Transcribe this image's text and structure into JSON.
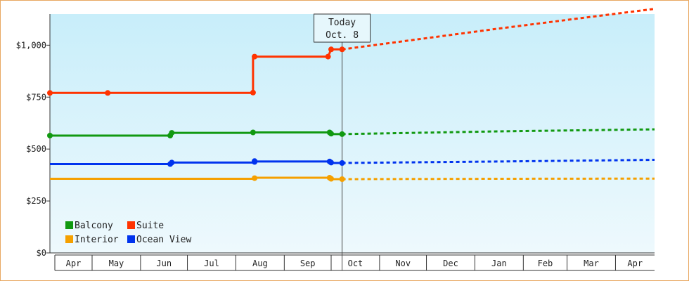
{
  "chart_data": {
    "type": "line",
    "title": "",
    "xlabel": "",
    "ylabel": "",
    "ylim": [
      0,
      1150
    ],
    "yticks": [
      {
        "value": 0,
        "label": "$0"
      },
      {
        "value": 250,
        "label": "$250"
      },
      {
        "value": 500,
        "label": "$500"
      },
      {
        "value": 750,
        "label": "$750"
      },
      {
        "value": 1000,
        "label": "$1,000"
      }
    ],
    "x_range_days": [
      -187,
      200
    ],
    "x_ticks": [
      {
        "label": "Apr",
        "start": -190,
        "end": -160
      },
      {
        "label": "May",
        "start": -160,
        "end": -129
      },
      {
        "label": "Jun",
        "start": -129,
        "end": -99
      },
      {
        "label": "Jul",
        "start": -99,
        "end": -68
      },
      {
        "label": "Aug",
        "start": -68,
        "end": -37
      },
      {
        "label": "Sep",
        "start": -37,
        "end": -7
      },
      {
        "label": "Oct",
        "start": -7,
        "end": 24
      },
      {
        "label": "Nov",
        "start": 24,
        "end": 54
      },
      {
        "label": "Dec",
        "start": 54,
        "end": 85
      },
      {
        "label": "Jan",
        "start": 85,
        "end": 116
      },
      {
        "label": "Feb",
        "start": 116,
        "end": 144
      },
      {
        "label": "Mar",
        "start": 144,
        "end": 175
      },
      {
        "label": "Apr",
        "start": 175,
        "end": 205
      }
    ],
    "today": {
      "line1": "Today",
      "line2": "Oct. 8",
      "day": 0
    },
    "grid": false,
    "legend_position": "bottom-left",
    "series": [
      {
        "name": "Balcony",
        "color": "#119911",
        "history": [
          [
            -187,
            565
          ],
          [
            -110,
            565
          ],
          [
            -110,
            578
          ],
          [
            -57,
            578
          ],
          [
            -57,
            580
          ],
          [
            -8,
            580
          ],
          [
            -8,
            572
          ],
          [
            0,
            572
          ]
        ],
        "markers": [
          [
            -187,
            565
          ],
          [
            -110,
            565
          ],
          [
            -109,
            578
          ],
          [
            -57,
            580
          ],
          [
            -8,
            580
          ],
          [
            -7,
            574
          ],
          [
            0,
            572
          ]
        ],
        "forecast": [
          [
            0,
            572
          ],
          [
            100,
            585
          ],
          [
            200,
            595
          ]
        ]
      },
      {
        "name": "Suite",
        "color": "#ff3300",
        "history": [
          [
            -187,
            770
          ],
          [
            -150,
            770
          ],
          [
            -57,
            770
          ],
          [
            -57,
            945
          ],
          [
            -9,
            945
          ],
          [
            -7,
            980
          ],
          [
            0,
            980
          ]
        ],
        "markers": [
          [
            -187,
            770
          ],
          [
            -150,
            770
          ],
          [
            -57,
            772
          ],
          [
            -56,
            945
          ],
          [
            -9,
            945
          ],
          [
            -7,
            980
          ],
          [
            0,
            980
          ]
        ],
        "forecast": [
          [
            0,
            980
          ],
          [
            100,
            1080
          ],
          [
            200,
            1175
          ]
        ]
      },
      {
        "name": "Interior",
        "color": "#f5a000",
        "history": [
          [
            -187,
            357
          ],
          [
            -56,
            357
          ],
          [
            -56,
            362
          ],
          [
            -8,
            362
          ],
          [
            -8,
            355
          ],
          [
            0,
            355
          ]
        ],
        "markers": [
          [
            -56,
            360
          ],
          [
            -8,
            362
          ],
          [
            -7,
            357
          ],
          [
            0,
            355
          ]
        ],
        "forecast": [
          [
            0,
            355
          ],
          [
            100,
            357
          ],
          [
            200,
            358
          ]
        ]
      },
      {
        "name": "Ocean View",
        "color": "#0033ee",
        "history": [
          [
            -187,
            428
          ],
          [
            -110,
            428
          ],
          [
            -110,
            435
          ],
          [
            -56,
            435
          ],
          [
            -56,
            440
          ],
          [
            -8,
            440
          ],
          [
            -8,
            433
          ],
          [
            0,
            433
          ]
        ],
        "markers": [
          [
            -110,
            428
          ],
          [
            -109,
            435
          ],
          [
            -56,
            438
          ],
          [
            -56,
            442
          ],
          [
            -8,
            440
          ],
          [
            -7,
            435
          ],
          [
            0,
            433
          ]
        ],
        "forecast": [
          [
            0,
            433
          ],
          [
            100,
            440
          ],
          [
            200,
            448
          ]
        ]
      }
    ],
    "legend": [
      {
        "name": "Balcony",
        "color": "#119911"
      },
      {
        "name": "Suite",
        "color": "#ff3300"
      },
      {
        "name": "Interior",
        "color": "#f5a000"
      },
      {
        "name": "Ocean View",
        "color": "#0033ee"
      }
    ]
  }
}
